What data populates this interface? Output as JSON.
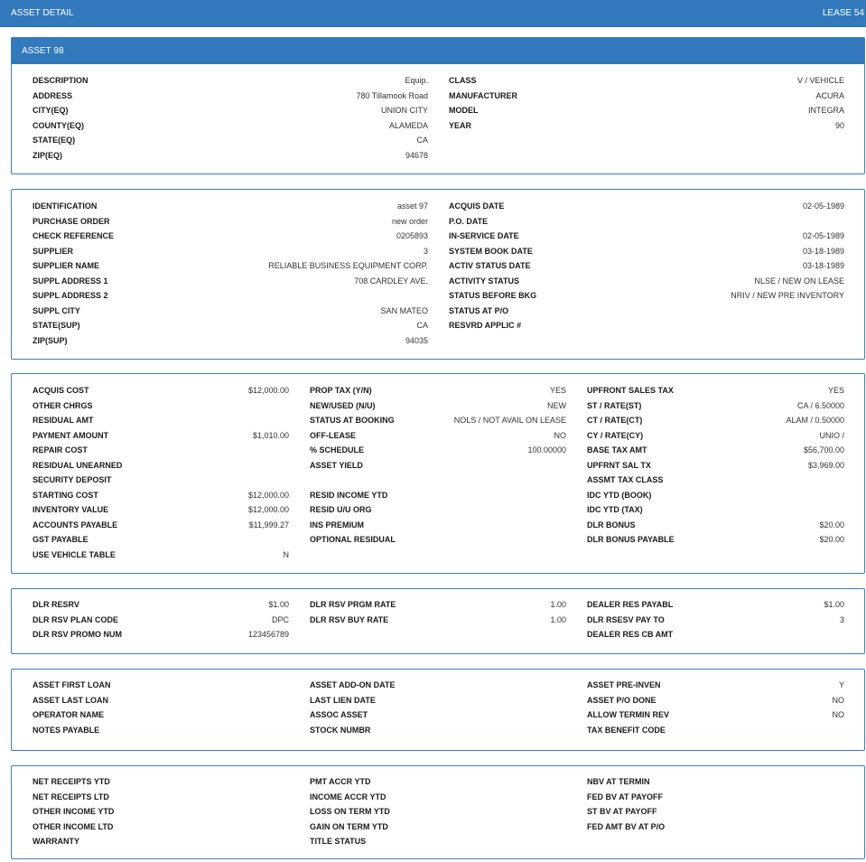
{
  "header": {
    "title": "ASSET DETAIL",
    "lease": "LEASE 54"
  },
  "asset_title": "ASSET 98",
  "sec1": {
    "left": [
      {
        "label": "DESCRIPTION",
        "value": "Equip."
      },
      {
        "label": "ADDRESS",
        "value": "780 Tillamook Road"
      },
      {
        "label": "CITY(EQ)",
        "value": "UNION CITY"
      },
      {
        "label": "COUNTY(EQ)",
        "value": "ALAMEDA"
      },
      {
        "label": "STATE(EQ)",
        "value": "CA"
      },
      {
        "label": "ZIP(EQ)",
        "value": "94678"
      }
    ],
    "right": [
      {
        "label": "CLASS",
        "value": "V / VEHICLE"
      },
      {
        "label": "MANUFACTURER",
        "value": "ACURA"
      },
      {
        "label": "MODEL",
        "value": "INTEGRA"
      },
      {
        "label": "YEAR",
        "value": "90"
      }
    ]
  },
  "sec2": {
    "left": [
      {
        "label": "IDENTIFICATION",
        "value": "asset 97"
      },
      {
        "label": "PURCHASE ORDER",
        "value": "new order"
      },
      {
        "label": "CHECK REFERENCE",
        "value": "0205893"
      },
      {
        "label": "SUPPLIER",
        "value": "3"
      },
      {
        "label": "SUPPLIER NAME",
        "value": "RELIABLE BUSINESS EQUIPMENT CORP."
      },
      {
        "label": "SUPPL ADDRESS 1",
        "value": "708 CARDLEY AVE."
      },
      {
        "label": "SUPPL ADDRESS 2",
        "value": ""
      },
      {
        "label": "SUPPL CITY",
        "value": "SAN MATEO"
      },
      {
        "label": "STATE(SUP)",
        "value": "CA"
      },
      {
        "label": "ZIP(SUP)",
        "value": "94035"
      }
    ],
    "right": [
      {
        "label": "ACQUIS DATE",
        "value": "02-05-1989"
      },
      {
        "label": "P.O. DATE",
        "value": ""
      },
      {
        "label": "IN-SERVICE DATE",
        "value": "02-05-1989"
      },
      {
        "label": "SYSTEM BOOK DATE",
        "value": "03-18-1989"
      },
      {
        "label": "ACTIV STATUS DATE",
        "value": "03-18-1989"
      },
      {
        "label": "ACTIVITY STATUS",
        "value": "NLSE / NEW ON LEASE"
      },
      {
        "label": "STATUS BEFORE BKG",
        "value": "NRIV / NEW PRE INVENTORY"
      },
      {
        "label": "STATUS AT P/O",
        "value": ""
      },
      {
        "label": "RESVRD APPLIC #",
        "value": ""
      }
    ]
  },
  "sec3": {
    "col1": [
      {
        "label": "ACQUIS COST",
        "value": "$12,000.00"
      },
      {
        "label": "OTHER CHRGS",
        "value": ""
      },
      {
        "label": "RESIDUAL AMT",
        "value": ""
      },
      {
        "label": "PAYMENT AMOUNT",
        "value": "$1,010.00"
      },
      {
        "label": "REPAIR COST",
        "value": ""
      },
      {
        "label": "RESIDUAL UNEARNED",
        "value": ""
      },
      {
        "label": "SECURITY DEPOSIT",
        "value": ""
      },
      {
        "label": "STARTING COST",
        "value": "$12,000.00"
      },
      {
        "label": "INVENTORY VALUE",
        "value": "$12,000.00"
      },
      {
        "label": "ACCOUNTS PAYABLE",
        "value": "$11,999.27"
      },
      {
        "label": "GST PAYABLE",
        "value": ""
      },
      {
        "label": "USE VEHICLE TABLE",
        "value": "N"
      }
    ],
    "col2": [
      {
        "label": "PROP TAX (Y/N)",
        "value": "YES"
      },
      {
        "label": "NEW/USED (N/U)",
        "value": "NEW"
      },
      {
        "label": "STATUS AT BOOKING",
        "value": "NOLS / NOT AVAIL ON LEASE"
      },
      {
        "label": "OFF-LEASE",
        "value": "NO"
      },
      {
        "label": "% SCHEDULE",
        "value": "100.00000"
      },
      {
        "label": "ASSET YIELD",
        "value": ""
      },
      {
        "label": "",
        "value": ""
      },
      {
        "label": "RESID INCOME YTD",
        "value": ""
      },
      {
        "label": "RESID U/U ORG",
        "value": ""
      },
      {
        "label": "INS PREMIUM",
        "value": ""
      },
      {
        "label": "OPTIONAL RESIDUAL",
        "value": ""
      }
    ],
    "col3": [
      {
        "label": "UPFRONT SALES TAX",
        "value": "YES"
      },
      {
        "label": "ST / RATE(ST)",
        "value": "CA / 6.50000"
      },
      {
        "label": "CT / RATE(CT)",
        "value": "ALAM / 0.50000"
      },
      {
        "label": "CY / RATE(CY)",
        "value": "UNIO /"
      },
      {
        "label": "BASE TAX AMT",
        "value": "$56,700.00"
      },
      {
        "label": "UPFRNT SAL TX",
        "value": "$3,969.00"
      },
      {
        "label": "ASSMT TAX CLASS",
        "value": ""
      },
      {
        "label": "IDC YTD (BOOK)",
        "value": ""
      },
      {
        "label": "IDC YTD (TAX)",
        "value": ""
      },
      {
        "label": "DLR BONUS",
        "value": "$20.00"
      },
      {
        "label": "DLR BONUS PAYABLE",
        "value": "$20.00"
      }
    ]
  },
  "sec4": {
    "col1": [
      {
        "label": "DLR RESRV",
        "value": "$1.00"
      },
      {
        "label": "DLR RSV PLAN CODE",
        "value": "DPC"
      },
      {
        "label": "DLR RSV PROMO NUM",
        "value": "123456789"
      }
    ],
    "col2": [
      {
        "label": "DLR RSV PRGM RATE",
        "value": "1.00"
      },
      {
        "label": "DLR RSV BUY RATE",
        "value": "1.00"
      }
    ],
    "col3": [
      {
        "label": "DEALER RES PAYABL",
        "value": "$1.00"
      },
      {
        "label": "DLR RSESV PAY TO",
        "value": "3"
      },
      {
        "label": "DEALER RES CB AMT",
        "value": ""
      }
    ]
  },
  "sec5": {
    "col1": [
      {
        "label": "ASSET FIRST LOAN",
        "value": ""
      },
      {
        "label": "ASSET LAST LOAN",
        "value": ""
      },
      {
        "label": "OPERATOR NAME",
        "value": ""
      },
      {
        "label": "NOTES PAYABLE",
        "value": ""
      }
    ],
    "col2": [
      {
        "label": "ASSET ADD-ON DATE",
        "value": ""
      },
      {
        "label": "LAST LIEN DATE",
        "value": ""
      },
      {
        "label": "ASSOC ASSET",
        "value": ""
      },
      {
        "label": "STOCK NUMBR",
        "value": ""
      }
    ],
    "col3": [
      {
        "label": "ASSET PRE-INVEN",
        "value": "Y"
      },
      {
        "label": "ASSET P/O DONE",
        "value": "NO"
      },
      {
        "label": "ALLOW TERMIN REV",
        "value": "NO"
      },
      {
        "label": "TAX BENEFIT CODE",
        "value": ""
      }
    ]
  },
  "sec6": {
    "col1": [
      {
        "label": "NET RECEIPTS YTD",
        "value": ""
      },
      {
        "label": "NET RECEIPTS LTD",
        "value": ""
      },
      {
        "label": "OTHER INCOME YTD",
        "value": ""
      },
      {
        "label": "OTHER INCOME LTD",
        "value": ""
      },
      {
        "label": "WARRANTY",
        "value": ""
      }
    ],
    "col2": [
      {
        "label": "PMT ACCR YTD",
        "value": ""
      },
      {
        "label": "INCOME ACCR YTD",
        "value": ""
      },
      {
        "label": "LOSS ON TERM YTD",
        "value": ""
      },
      {
        "label": "GAIN ON TERM YTD",
        "value": ""
      },
      {
        "label": "TITLE STATUS",
        "value": ""
      }
    ],
    "col3": [
      {
        "label": "NBV AT TERMIN",
        "value": ""
      },
      {
        "label": "FED BV AT PAYOFF",
        "value": ""
      },
      {
        "label": "ST BV AT PAYOFF",
        "value": ""
      },
      {
        "label": "FED AMT BV AT P/O",
        "value": ""
      }
    ]
  }
}
